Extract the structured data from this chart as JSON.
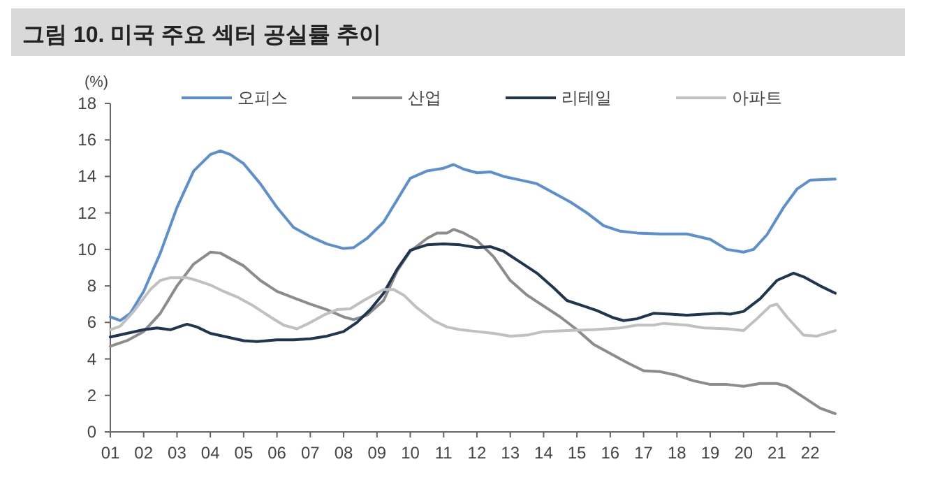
{
  "chart_data": {
    "type": "line",
    "title": "그림 10. 미국 주요 섹터 공실률 추이",
    "ylabel": "(%)",
    "xlim": [
      2001,
      2022.75
    ],
    "ylim": [
      0,
      18
    ],
    "yticks": [
      0,
      2,
      4,
      6,
      8,
      10,
      12,
      14,
      16,
      18
    ],
    "xticks": [
      {
        "value": 2001,
        "label": "01"
      },
      {
        "value": 2002,
        "label": "02"
      },
      {
        "value": 2003,
        "label": "03"
      },
      {
        "value": 2004,
        "label": "04"
      },
      {
        "value": 2005,
        "label": "05"
      },
      {
        "value": 2006,
        "label": "06"
      },
      {
        "value": 2007,
        "label": "07"
      },
      {
        "value": 2008,
        "label": "08"
      },
      {
        "value": 2009,
        "label": "09"
      },
      {
        "value": 2010,
        "label": "10"
      },
      {
        "value": 2011,
        "label": "11"
      },
      {
        "value": 2012,
        "label": "12"
      },
      {
        "value": 2013,
        "label": "13"
      },
      {
        "value": 2014,
        "label": "14"
      },
      {
        "value": 2015,
        "label": "15"
      },
      {
        "value": 2016,
        "label": "16"
      },
      {
        "value": 2017,
        "label": "17"
      },
      {
        "value": 2018,
        "label": "18"
      },
      {
        "value": 2019,
        "label": "19"
      },
      {
        "value": 2020,
        "label": "20"
      },
      {
        "value": 2021,
        "label": "21"
      },
      {
        "value": 2022,
        "label": "22"
      }
    ],
    "legend": "top",
    "grid": false,
    "series": [
      {
        "name": "오피스",
        "color": "#5b8fd0",
        "x": [
          2001,
          2001.3,
          2001.6,
          2002,
          2002.5,
          2003,
          2003.5,
          2004,
          2004.3,
          2004.6,
          2005,
          2005.5,
          2006,
          2006.5,
          2007,
          2007.5,
          2008,
          2008.3,
          2008.7,
          2009.2,
          2009.6,
          2010,
          2010.5,
          2011,
          2011.3,
          2011.6,
          2012,
          2012.4,
          2012.8,
          2013.3,
          2013.8,
          2014.3,
          2014.8,
          2015.3,
          2015.8,
          2016.3,
          2016.8,
          2017.5,
          2018.3,
          2019,
          2019.5,
          2020,
          2020.3,
          2020.7,
          2021.2,
          2021.6,
          2022,
          2022.75
        ],
        "values": [
          6.3,
          6.1,
          6.5,
          7.7,
          9.8,
          12.3,
          14.3,
          15.2,
          15.4,
          15.2,
          14.7,
          13.6,
          12.3,
          11.2,
          10.7,
          10.3,
          10.05,
          10.1,
          10.6,
          11.5,
          12.7,
          13.9,
          14.3,
          14.45,
          14.65,
          14.4,
          14.2,
          14.25,
          14.0,
          13.8,
          13.6,
          13.1,
          12.6,
          12.0,
          11.3,
          11.0,
          10.9,
          10.85,
          10.85,
          10.55,
          10.0,
          9.85,
          10.0,
          10.8,
          12.3,
          13.3,
          13.8,
          13.85
        ]
      },
      {
        "name": "산업",
        "color": "#8c8c8c",
        "x": [
          2001,
          2001.5,
          2002,
          2002.5,
          2003,
          2003.5,
          2004,
          2004.3,
          2005,
          2005.5,
          2006,
          2006.5,
          2007,
          2007.5,
          2008,
          2008.3,
          2008.7,
          2009.2,
          2009.6,
          2010,
          2010.5,
          2010.8,
          2011.1,
          2011.3,
          2011.6,
          2012,
          2012.5,
          2013,
          2013.5,
          2014,
          2014.5,
          2015,
          2015.5,
          2016,
          2016.5,
          2017,
          2017.5,
          2018,
          2018.5,
          2019,
          2019.5,
          2020,
          2020.5,
          2021,
          2021.3,
          2021.8,
          2022.3,
          2022.75
        ],
        "values": [
          4.7,
          5.0,
          5.5,
          6.5,
          8.0,
          9.2,
          9.85,
          9.8,
          9.1,
          8.3,
          7.7,
          7.35,
          7.0,
          6.7,
          6.3,
          6.15,
          6.4,
          7.2,
          8.8,
          9.9,
          10.6,
          10.9,
          10.9,
          11.1,
          10.9,
          10.5,
          9.6,
          8.3,
          7.5,
          6.9,
          6.3,
          5.6,
          4.8,
          4.3,
          3.8,
          3.35,
          3.3,
          3.1,
          2.8,
          2.6,
          2.6,
          2.5,
          2.65,
          2.65,
          2.5,
          1.9,
          1.3,
          1.0
        ]
      },
      {
        "name": "리테일",
        "color": "#1f3550",
        "x": [
          2001,
          2001.5,
          2002,
          2002.4,
          2002.8,
          2003.3,
          2003.6,
          2004,
          2004.5,
          2005,
          2005.4,
          2006,
          2006.5,
          2007,
          2007.5,
          2008,
          2008.4,
          2008.8,
          2009.2,
          2009.6,
          2010,
          2010.5,
          2011,
          2011.5,
          2012,
          2012.4,
          2012.8,
          2013.3,
          2013.8,
          2014.3,
          2014.7,
          2015.2,
          2015.6,
          2016.1,
          2016.4,
          2016.8,
          2017.3,
          2017.8,
          2018.3,
          2018.8,
          2019.3,
          2019.6,
          2020,
          2020.5,
          2021,
          2021.5,
          2021.8,
          2022.3,
          2022.75
        ],
        "values": [
          5.2,
          5.4,
          5.6,
          5.7,
          5.6,
          5.9,
          5.75,
          5.4,
          5.2,
          5.0,
          4.95,
          5.05,
          5.05,
          5.1,
          5.25,
          5.5,
          6.0,
          6.7,
          7.6,
          8.9,
          9.95,
          10.25,
          10.3,
          10.25,
          10.1,
          10.15,
          9.9,
          9.3,
          8.7,
          7.9,
          7.2,
          6.9,
          6.65,
          6.25,
          6.1,
          6.2,
          6.5,
          6.45,
          6.4,
          6.45,
          6.5,
          6.45,
          6.6,
          7.3,
          8.3,
          8.7,
          8.5,
          8.0,
          7.6
        ]
      },
      {
        "name": "아파트",
        "color": "#c0c0c0",
        "x": [
          2001,
          2001.3,
          2001.7,
          2002.2,
          2002.5,
          2002.8,
          2003.3,
          2003.6,
          2004,
          2004.4,
          2004.8,
          2005.3,
          2005.8,
          2006.2,
          2006.6,
          2006.9,
          2007.4,
          2007.8,
          2008.2,
          2008.6,
          2009.2,
          2009.5,
          2009.8,
          2010.2,
          2010.7,
          2011.1,
          2011.5,
          2012,
          2012.5,
          2013,
          2013.5,
          2014,
          2014.7,
          2015.5,
          2016.3,
          2016.8,
          2017.3,
          2017.6,
          2018.3,
          2018.8,
          2019.5,
          2020,
          2020.4,
          2020.8,
          2021,
          2021.3,
          2021.8,
          2022.2,
          2022.75
        ],
        "values": [
          5.6,
          5.8,
          6.6,
          7.8,
          8.3,
          8.45,
          8.45,
          8.3,
          8.05,
          7.7,
          7.4,
          6.9,
          6.3,
          5.85,
          5.65,
          5.9,
          6.4,
          6.7,
          6.75,
          7.2,
          7.8,
          7.8,
          7.5,
          6.8,
          6.1,
          5.75,
          5.6,
          5.5,
          5.4,
          5.25,
          5.3,
          5.5,
          5.55,
          5.6,
          5.7,
          5.85,
          5.85,
          5.95,
          5.85,
          5.7,
          5.65,
          5.55,
          6.2,
          6.9,
          7.0,
          6.3,
          5.3,
          5.25,
          5.55
        ]
      }
    ]
  }
}
